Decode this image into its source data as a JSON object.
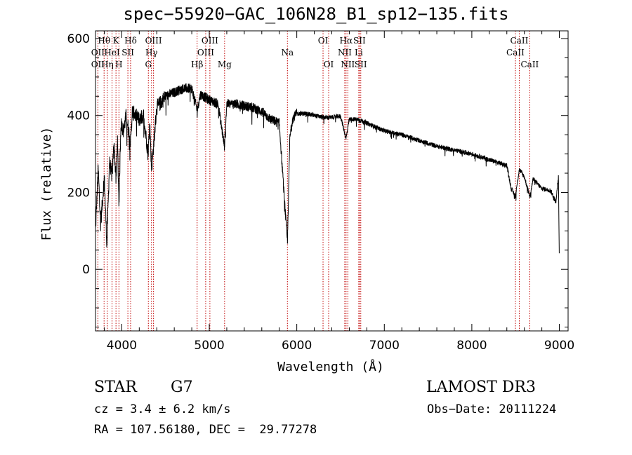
{
  "chart_data": {
    "type": "line",
    "title": "spec−55920−GAC_106N28_B1_sp12−135.fits",
    "xlabel": "Wavelength (Å)",
    "ylabel": "Flux (relative)",
    "xlim": [
      3700,
      9100
    ],
    "ylim": [
      -160,
      620
    ],
    "xticks": [
      4000,
      5000,
      6000,
      7000,
      8000,
      9000
    ],
    "yticks": [
      0,
      200,
      400,
      600
    ],
    "grid": false,
    "line_color": "#000000",
    "marker_color": "#c00000",
    "spectrum_anchors": [
      [
        3700,
        100
      ],
      [
        3730,
        260
      ],
      [
        3760,
        120
      ],
      [
        3800,
        240
      ],
      [
        3830,
        60
      ],
      [
        3860,
        280
      ],
      [
        3890,
        240
      ],
      [
        3910,
        330
      ],
      [
        3935,
        230
      ],
      [
        3950,
        340
      ],
      [
        3968,
        170
      ],
      [
        3990,
        380
      ],
      [
        4020,
        360
      ],
      [
        4050,
        400
      ],
      [
        4101,
        330
      ],
      [
        4120,
        410
      ],
      [
        4200,
        390
      ],
      [
        4250,
        400
      ],
      [
        4300,
        300
      ],
      [
        4320,
        380
      ],
      [
        4340,
        260
      ],
      [
        4400,
        420
      ],
      [
        4500,
        450
      ],
      [
        4600,
        460
      ],
      [
        4700,
        470
      ],
      [
        4800,
        470
      ],
      [
        4861,
        415
      ],
      [
        4900,
        455
      ],
      [
        5000,
        440
      ],
      [
        5100,
        430
      ],
      [
        5173,
        320
      ],
      [
        5200,
        430
      ],
      [
        5300,
        430
      ],
      [
        5400,
        425
      ],
      [
        5500,
        420
      ],
      [
        5600,
        410
      ],
      [
        5700,
        390
      ],
      [
        5800,
        380
      ],
      [
        5850,
        210
      ],
      [
        5893,
        70
      ],
      [
        5920,
        340
      ],
      [
        5950,
        390
      ],
      [
        6000,
        405
      ],
      [
        6100,
        405
      ],
      [
        6200,
        400
      ],
      [
        6300,
        395
      ],
      [
        6400,
        395
      ],
      [
        6500,
        398
      ],
      [
        6563,
        340
      ],
      [
        6600,
        390
      ],
      [
        6700,
        390
      ],
      [
        6800,
        380
      ],
      [
        6900,
        370
      ],
      [
        7000,
        360
      ],
      [
        7200,
        350
      ],
      [
        7400,
        335
      ],
      [
        7600,
        320
      ],
      [
        7800,
        310
      ],
      [
        8000,
        300
      ],
      [
        8200,
        285
      ],
      [
        8400,
        270
      ],
      [
        8450,
        210
      ],
      [
        8498,
        190
      ],
      [
        8542,
        260
      ],
      [
        8600,
        240
      ],
      [
        8662,
        190
      ],
      [
        8700,
        235
      ],
      [
        8800,
        210
      ],
      [
        8900,
        205
      ],
      [
        8960,
        175
      ],
      [
        8990,
        240
      ],
      [
        9000,
        20
      ]
    ],
    "lines": [
      {
        "label": "Hθ",
        "wl": 3798,
        "row": 1
      },
      {
        "label": "OII",
        "wl": 3727,
        "row": 2
      },
      {
        "label": "OII",
        "wl": 3727,
        "row": 3
      },
      {
        "label": "K",
        "wl": 3934,
        "row": 1
      },
      {
        "label": "HeI",
        "wl": 3889,
        "row": 2
      },
      {
        "label": "Hη",
        "wl": 3835,
        "row": 3
      },
      {
        "label": "Hδ",
        "wl": 4101,
        "row": 1
      },
      {
        "label": "SII",
        "wl": 4070,
        "row": 2
      },
      {
        "label": "H",
        "wl": 3968,
        "row": 3
      },
      {
        "label": "OIII",
        "wl": 4363,
        "row": 1
      },
      {
        "label": "Hγ",
        "wl": 4340,
        "row": 2
      },
      {
        "label": "G",
        "wl": 4304,
        "row": 3
      },
      {
        "label": "OIII",
        "wl": 5007,
        "row": 1
      },
      {
        "label": "OIII",
        "wl": 4959,
        "row": 2
      },
      {
        "label": "Hβ",
        "wl": 4861,
        "row": 3
      },
      {
        "label": "Mg",
        "wl": 5175,
        "row": 3
      },
      {
        "label": "Na",
        "wl": 5893,
        "row": 2
      },
      {
        "label": "OI",
        "wl": 6300,
        "row": 1
      },
      {
        "label": "OI",
        "wl": 6364,
        "row": 3
      },
      {
        "label": "Hα",
        "wl": 6563,
        "row": 1
      },
      {
        "label": "NII",
        "wl": 6548,
        "row": 2
      },
      {
        "label": "NII",
        "wl": 6583,
        "row": 3
      },
      {
        "label": "SII",
        "wl": 6716,
        "row": 1
      },
      {
        "label": "Li",
        "wl": 6708,
        "row": 2
      },
      {
        "label": "SII",
        "wl": 6731,
        "row": 3
      },
      {
        "label": "CaII",
        "wl": 8542,
        "row": 1
      },
      {
        "label": "CaII",
        "wl": 8498,
        "row": 2
      },
      {
        "label": "CaII",
        "wl": 8662,
        "row": 3
      }
    ]
  },
  "info": {
    "object_class": "STAR",
    "subclass": "G7",
    "survey": "LAMOST DR3",
    "redshift": "cz = 3.4 ± 6.2 km/s",
    "obs_date": "Obs−Date: 20111224",
    "coords": "RA = 107.56180, DEC =  29.77278"
  }
}
